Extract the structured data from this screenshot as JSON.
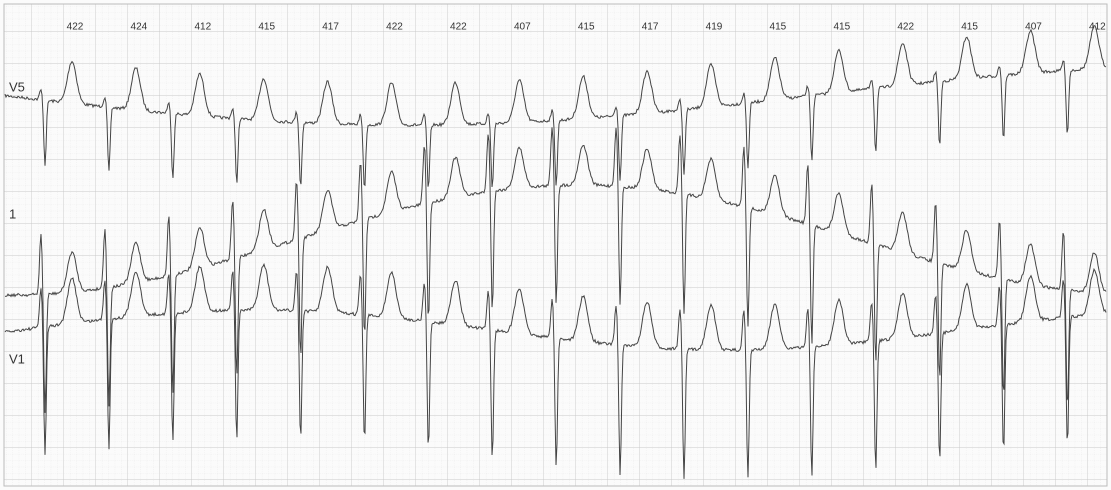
{
  "intervals": [
    "422",
    "424",
    "412",
    "415",
    "417",
    "422",
    "422",
    "407",
    "415",
    "417",
    "419",
    "415",
    "415",
    "422",
    "415",
    "407",
    "412"
  ],
  "leads": [
    "V5",
    "1",
    "V1"
  ]
}
